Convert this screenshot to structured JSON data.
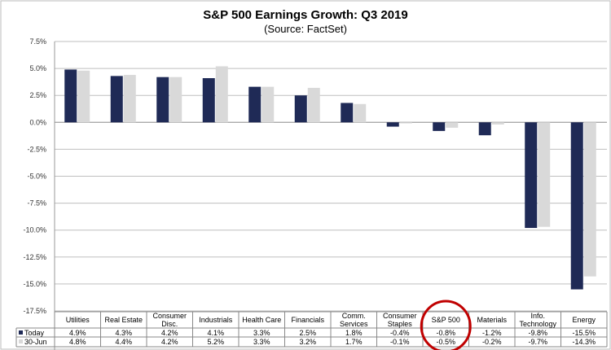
{
  "chart_data": {
    "type": "bar",
    "title": "S&P 500 Earnings Growth: Q3 2019",
    "subtitle": "(Source: FactSet)",
    "categories": [
      [
        "Utilities"
      ],
      [
        "Real Estate"
      ],
      [
        "Consumer",
        "Disc."
      ],
      [
        "Industrials"
      ],
      [
        "Health Care"
      ],
      [
        "Financials"
      ],
      [
        "Comm.",
        "Services"
      ],
      [
        "Consumer",
        "Staples"
      ],
      [
        "S&P 500"
      ],
      [
        "Materials"
      ],
      [
        "Info.",
        "Technology"
      ],
      [
        "Energy"
      ]
    ],
    "series": [
      {
        "name": "Today",
        "color": "#1f2a56",
        "values": [
          4.9,
          4.3,
          4.2,
          4.1,
          3.3,
          2.5,
          1.8,
          -0.4,
          -0.8,
          -1.2,
          -9.8,
          -15.5
        ],
        "labels": [
          "4.9%",
          "4.3%",
          "4.2%",
          "4.1%",
          "3.3%",
          "2.5%",
          "1.8%",
          "-0.4%",
          "-0.8%",
          "-1.2%",
          "-9.8%",
          "-15.5%"
        ]
      },
      {
        "name": "30-Jun",
        "color": "#d9d9d9",
        "values": [
          4.8,
          4.4,
          4.2,
          5.2,
          3.3,
          3.2,
          1.7,
          -0.1,
          -0.5,
          -0.2,
          -9.7,
          -14.3
        ],
        "labels": [
          "4.8%",
          "4.4%",
          "4.2%",
          "5.2%",
          "3.3%",
          "3.2%",
          "1.7%",
          "-0.1%",
          "-0.5%",
          "-0.2%",
          "-9.7%",
          "-14.3%"
        ]
      }
    ],
    "ylim": [
      -17.5,
      7.5
    ],
    "yticks": [
      "7.5%",
      "5.0%",
      "2.5%",
      "0.0%",
      "-2.5%",
      "-5.0%",
      "-7.5%",
      "-10.0%",
      "-12.5%",
      "-15.0%",
      "-17.5%"
    ],
    "grid": true,
    "legend": "data-table",
    "highlight": {
      "category": "S&P 500",
      "color": "#c00000",
      "shape": "circle"
    }
  }
}
